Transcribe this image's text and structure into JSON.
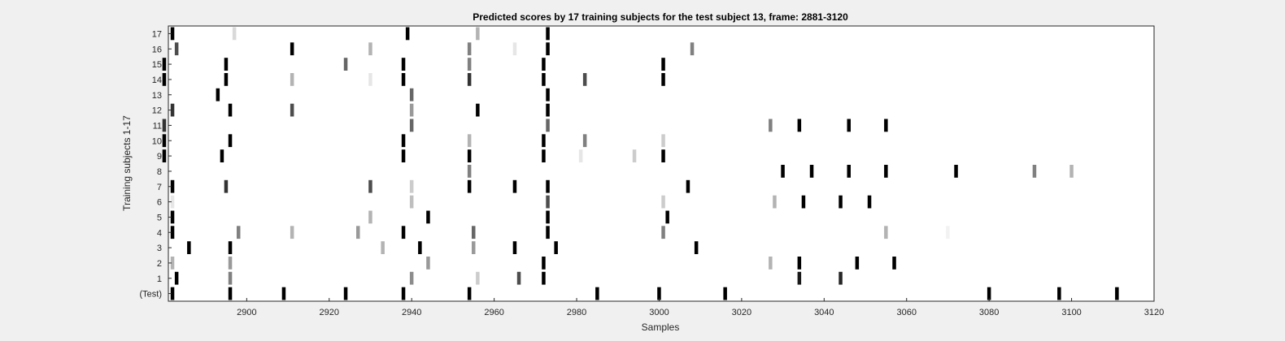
{
  "chart_data": {
    "type": "heatmap",
    "title": "Predicted scores by 17 training subjects for the test subject 13, frame: 2881-3120",
    "xlabel": "Samples",
    "ylabel": "Training subjects 1-17",
    "xlim": [
      2881,
      3120
    ],
    "x_ticks": [
      "2900",
      "2920",
      "2940",
      "2960",
      "2980",
      "3000",
      "3020",
      "3040",
      "3060",
      "3080",
      "3100",
      "3120"
    ],
    "x_tick_values": [
      2900,
      2920,
      2940,
      2960,
      2980,
      3000,
      3020,
      3040,
      3060,
      3080,
      3100,
      3120
    ],
    "y_labels": [
      "(Test)",
      "1",
      "2",
      "3",
      "4",
      "5",
      "6",
      "7",
      "8",
      "9",
      "10",
      "11",
      "12",
      "13",
      "14",
      "15",
      "16",
      "17"
    ],
    "colormap": "gray-inverted",
    "background": "#ffffff",
    "rows": [
      {
        "row": "(Test)",
        "marks": [
          [
            2882,
            1.0
          ],
          [
            2896,
            1.0
          ],
          [
            2909,
            1.0
          ],
          [
            2924,
            1.0
          ],
          [
            2938,
            1.0
          ],
          [
            2954,
            1.0
          ],
          [
            2985,
            1.0
          ],
          [
            3000,
            1.0
          ],
          [
            3016,
            1.0
          ],
          [
            3080,
            1.0
          ],
          [
            3097,
            1.0
          ],
          [
            3111,
            1.0
          ]
        ]
      },
      {
        "row": "1",
        "marks": [
          [
            2883,
            1.0
          ],
          [
            2896,
            0.5
          ],
          [
            2940,
            0.45
          ],
          [
            2956,
            0.2
          ],
          [
            2966,
            0.7
          ],
          [
            2972,
            1.0
          ],
          [
            3034,
            0.9
          ],
          [
            3044,
            0.85
          ]
        ]
      },
      {
        "row": "2",
        "marks": [
          [
            2882,
            0.3
          ],
          [
            2896,
            0.4
          ],
          [
            2944,
            0.4
          ],
          [
            2972,
            1.0
          ],
          [
            3027,
            0.3
          ],
          [
            3034,
            1.0
          ],
          [
            3048,
            1.0
          ],
          [
            3057,
            1.0
          ]
        ]
      },
      {
        "row": "3",
        "marks": [
          [
            2886,
            1.0
          ],
          [
            2896,
            1.0
          ],
          [
            2933,
            0.3
          ],
          [
            2942,
            1.0
          ],
          [
            2955,
            0.4
          ],
          [
            2965,
            1.0
          ],
          [
            2975,
            1.0
          ],
          [
            3009,
            1.0
          ]
        ]
      },
      {
        "row": "4",
        "marks": [
          [
            2882,
            1.0
          ],
          [
            2898,
            0.5
          ],
          [
            2911,
            0.3
          ],
          [
            2927,
            0.4
          ],
          [
            2938,
            1.0
          ],
          [
            2955,
            0.6
          ],
          [
            2973,
            1.0
          ],
          [
            3001,
            0.5
          ],
          [
            3055,
            0.3
          ],
          [
            3070,
            0.05
          ]
        ]
      },
      {
        "row": "5",
        "marks": [
          [
            2882,
            1.0
          ],
          [
            2930,
            0.3
          ],
          [
            2944,
            1.0
          ],
          [
            2973,
            1.0
          ],
          [
            3002,
            1.0
          ]
        ]
      },
      {
        "row": "6",
        "marks": [
          [
            2882,
            0.1
          ],
          [
            2940,
            0.25
          ],
          [
            2973,
            0.7
          ],
          [
            3001,
            0.2
          ],
          [
            3028,
            0.3
          ],
          [
            3035,
            1.0
          ],
          [
            3044,
            1.0
          ],
          [
            3051,
            1.0
          ]
        ]
      },
      {
        "row": "7",
        "marks": [
          [
            2882,
            1.0
          ],
          [
            2895,
            0.8
          ],
          [
            2930,
            0.7
          ],
          [
            2940,
            0.2
          ],
          [
            2954,
            1.0
          ],
          [
            2965,
            1.0
          ],
          [
            2973,
            1.0
          ],
          [
            3007,
            1.0
          ]
        ]
      },
      {
        "row": "8",
        "marks": [
          [
            2954,
            0.5
          ],
          [
            3030,
            1.0
          ],
          [
            3037,
            1.0
          ],
          [
            3046,
            1.0
          ],
          [
            3055,
            1.0
          ],
          [
            3072,
            1.0
          ],
          [
            3091,
            0.5
          ],
          [
            3100,
            0.3
          ]
        ]
      },
      {
        "row": "9",
        "marks": [
          [
            2880,
            1.0
          ],
          [
            2894,
            1.0
          ],
          [
            2938,
            1.0
          ],
          [
            2954,
            1.0
          ],
          [
            2972,
            1.0
          ],
          [
            2981,
            0.1
          ],
          [
            2994,
            0.2
          ],
          [
            3001,
            1.0
          ]
        ]
      },
      {
        "row": "10",
        "marks": [
          [
            2880,
            1.0
          ],
          [
            2896,
            1.0
          ],
          [
            2938,
            1.0
          ],
          [
            2954,
            0.3
          ],
          [
            2972,
            1.0
          ],
          [
            2982,
            0.5
          ],
          [
            3001,
            0.2
          ]
        ]
      },
      {
        "row": "11",
        "marks": [
          [
            2880,
            0.8
          ],
          [
            2940,
            0.6
          ],
          [
            2973,
            0.6
          ],
          [
            3027,
            0.5
          ],
          [
            3034,
            1.0
          ],
          [
            3046,
            1.0
          ],
          [
            3055,
            1.0
          ]
        ]
      },
      {
        "row": "12",
        "marks": [
          [
            2882,
            0.8
          ],
          [
            2896,
            1.0
          ],
          [
            2911,
            0.7
          ],
          [
            2940,
            0.4
          ],
          [
            2956,
            1.0
          ],
          [
            2973,
            1.0
          ]
        ]
      },
      {
        "row": "13",
        "marks": [
          [
            2893,
            1.0
          ],
          [
            2940,
            0.6
          ],
          [
            2973,
            1.0
          ]
        ]
      },
      {
        "row": "14",
        "marks": [
          [
            2880,
            1.0
          ],
          [
            2895,
            1.0
          ],
          [
            2911,
            0.3
          ],
          [
            2930,
            0.1
          ],
          [
            2938,
            1.0
          ],
          [
            2954,
            0.8
          ],
          [
            2972,
            1.0
          ],
          [
            2982,
            0.7
          ],
          [
            3001,
            1.0
          ]
        ]
      },
      {
        "row": "15",
        "marks": [
          [
            2880,
            1.0
          ],
          [
            2895,
            1.0
          ],
          [
            2924,
            0.6
          ],
          [
            2938,
            1.0
          ],
          [
            2954,
            0.5
          ],
          [
            2972,
            1.0
          ],
          [
            3001,
            1.0
          ]
        ]
      },
      {
        "row": "16",
        "marks": [
          [
            2883,
            0.7
          ],
          [
            2911,
            1.0
          ],
          [
            2930,
            0.3
          ],
          [
            2954,
            0.5
          ],
          [
            2965,
            0.1
          ],
          [
            2973,
            1.0
          ],
          [
            3008,
            0.5
          ]
        ]
      },
      {
        "row": "17",
        "marks": [
          [
            2882,
            1.0
          ],
          [
            2897,
            0.15
          ],
          [
            2939,
            1.0
          ],
          [
            2956,
            0.3
          ],
          [
            2973,
            1.0
          ]
        ]
      }
    ]
  }
}
